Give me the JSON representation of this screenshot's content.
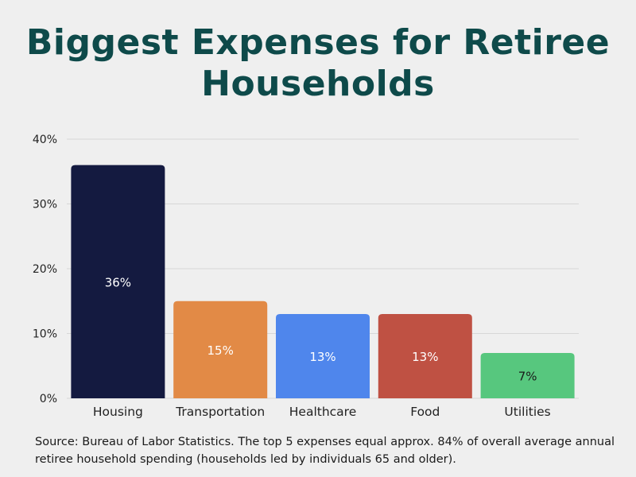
{
  "title": "Biggest Expenses for Retiree Households",
  "source": "Source: Bureau of Labor Statistics. The top 5 expenses equal approx. 84% of overall average annual retiree household spending (households led by individuals 65 and older).",
  "chart_data": {
    "type": "bar",
    "title": "Biggest Expenses for Retiree Households",
    "categories": [
      "Housing",
      "Transportation",
      "Healthcare",
      "Food",
      "Utilities"
    ],
    "values": [
      36,
      15,
      13,
      13,
      7
    ],
    "data_labels": [
      "36%",
      "15%",
      "13%",
      "13%",
      "7%"
    ],
    "colors": [
      "#141a40",
      "#e28a46",
      "#4f86ec",
      "#bf5143",
      "#57c77e"
    ],
    "label_colors": [
      "#ffffff",
      "#ffffff",
      "#ffffff",
      "#ffffff",
      "#1a1a1a"
    ],
    "ylim": [
      0,
      40
    ],
    "yticks": [
      0,
      10,
      20,
      30,
      40
    ],
    "ytick_labels": [
      "0%",
      "10%",
      "20%",
      "30%",
      "40%"
    ],
    "xlabel": "",
    "ylabel": "",
    "grid": true,
    "legend": "none"
  }
}
